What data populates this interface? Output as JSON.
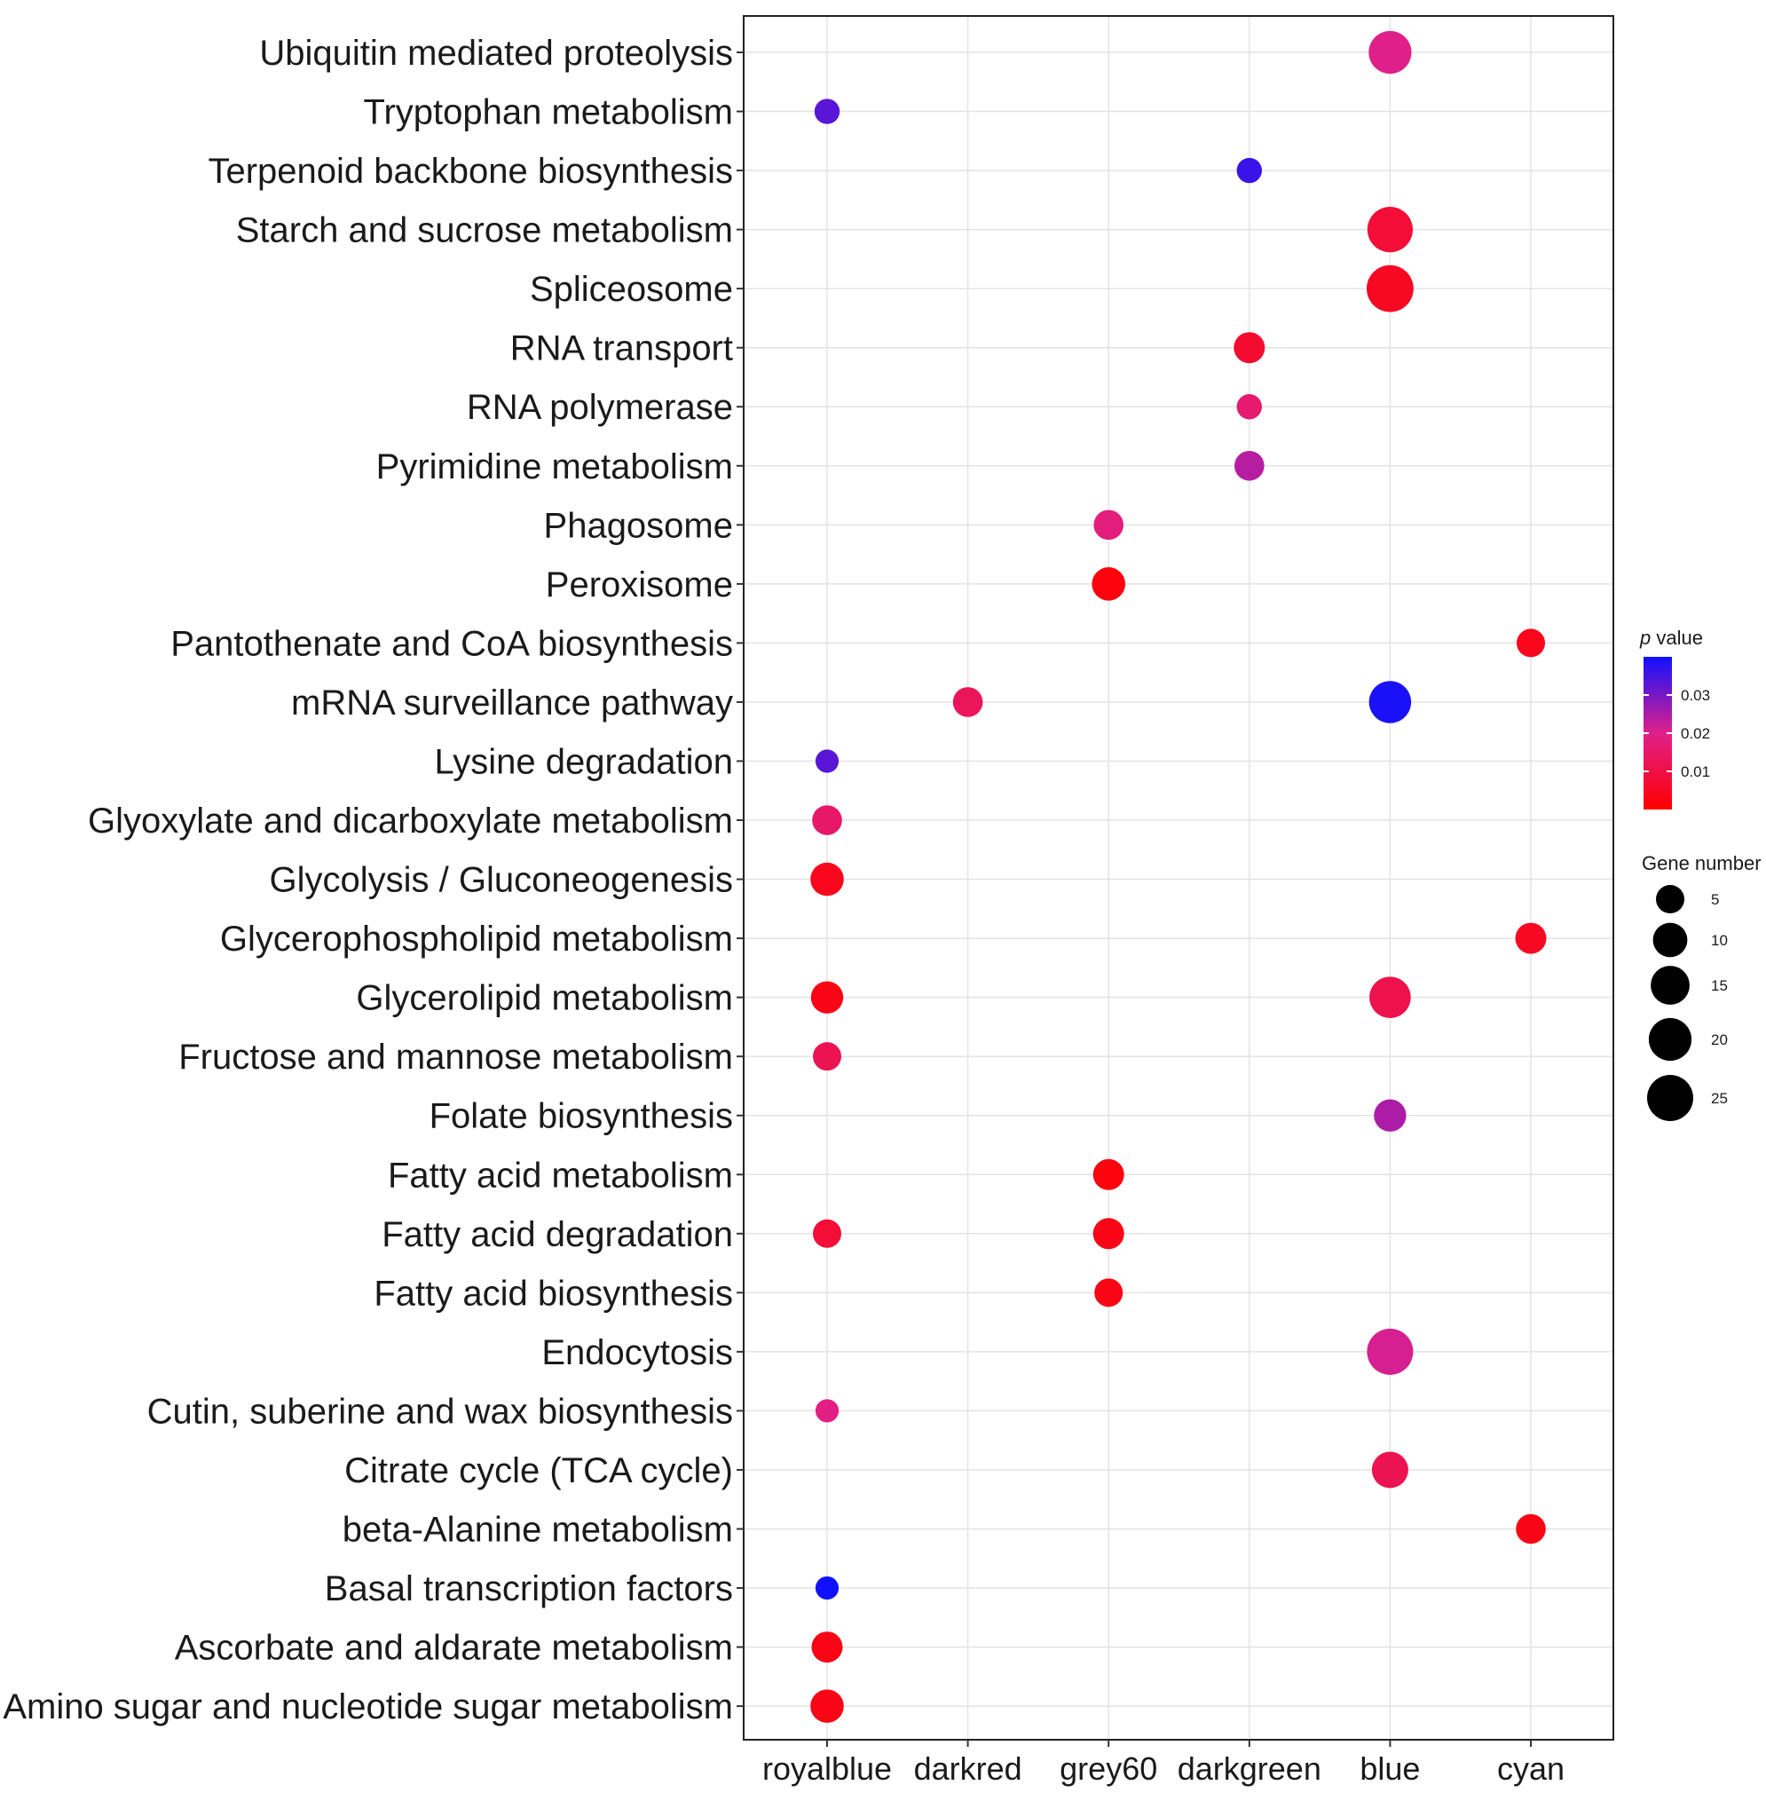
{
  "chart_data": {
    "type": "scatter",
    "title": "",
    "xlabel": "",
    "ylabel": "",
    "x_categories": [
      "royalblue",
      "darkred",
      "grey60",
      "darkgreen",
      "blue",
      "cyan"
    ],
    "y_categories": [
      "Ubiquitin mediated proteolysis",
      "Tryptophan metabolism",
      "Terpenoid backbone biosynthesis",
      "Starch and sucrose metabolism",
      "Spliceosome",
      "RNA transport",
      "RNA polymerase",
      "Pyrimidine metabolism",
      "Phagosome",
      "Peroxisome",
      "Pantothenate and CoA biosynthesis",
      "mRNA surveillance pathway",
      "Lysine degradation",
      "Glyoxylate and dicarboxylate metabolism",
      "Glycolysis / Gluconeogenesis",
      "Glycerophospholipid metabolism",
      "Glycerolipid metabolism",
      "Fructose and mannose metabolism",
      "Folate biosynthesis",
      "Fatty acid metabolism",
      "Fatty acid degradation",
      "Fatty acid biosynthesis",
      "Endocytosis",
      "Cutin, suberine and wax biosynthesis",
      "Citrate cycle (TCA cycle)",
      "beta-Alanine metabolism",
      "Basal transcription factors",
      "Ascorbate and aldarate metabolism",
      "Amino sugar and nucleotide sugar metabolism"
    ],
    "points": [
      {
        "pathway": "Ubiquitin mediated proteolysis",
        "module": "blue",
        "gene_number": 20,
        "p_value": 0.02
      },
      {
        "pathway": "Tryptophan metabolism",
        "module": "royalblue",
        "gene_number": 3,
        "p_value": 0.033
      },
      {
        "pathway": "Terpenoid backbone biosynthesis",
        "module": "darkgreen",
        "gene_number": 3,
        "p_value": 0.036
      },
      {
        "pathway": "Starch and sucrose metabolism",
        "module": "blue",
        "gene_number": 24,
        "p_value": 0.008
      },
      {
        "pathway": "Spliceosome",
        "module": "blue",
        "gene_number": 26,
        "p_value": 0.005
      },
      {
        "pathway": "RNA transport",
        "module": "darkgreen",
        "gene_number": 7,
        "p_value": 0.007
      },
      {
        "pathway": "RNA polymerase",
        "module": "darkgreen",
        "gene_number": 3,
        "p_value": 0.016
      },
      {
        "pathway": "Pyrimidine metabolism",
        "module": "darkgreen",
        "gene_number": 6,
        "p_value": 0.024
      },
      {
        "pathway": "Phagosome",
        "module": "grey60",
        "gene_number": 6,
        "p_value": 0.018
      },
      {
        "pathway": "Peroxisome",
        "module": "grey60",
        "gene_number": 9,
        "p_value": 0.002
      },
      {
        "pathway": "Pantothenate and CoA biosynthesis",
        "module": "cyan",
        "gene_number": 5,
        "p_value": 0.004
      },
      {
        "pathway": "mRNA surveillance pathway",
        "module": "darkred",
        "gene_number": 6,
        "p_value": 0.013
      },
      {
        "pathway": "mRNA surveillance pathway",
        "module": "blue",
        "gene_number": 19,
        "p_value": 0.039
      },
      {
        "pathway": "Lysine degradation",
        "module": "royalblue",
        "gene_number": 2,
        "p_value": 0.033
      },
      {
        "pathway": "Glyoxylate and dicarboxylate metabolism",
        "module": "royalblue",
        "gene_number": 6,
        "p_value": 0.015
      },
      {
        "pathway": "Glycolysis / Gluconeogenesis",
        "module": "royalblue",
        "gene_number": 9,
        "p_value": 0.004
      },
      {
        "pathway": "Glycerophospholipid metabolism",
        "module": "cyan",
        "gene_number": 7,
        "p_value": 0.005
      },
      {
        "pathway": "Glycerolipid metabolism",
        "module": "royalblue",
        "gene_number": 8,
        "p_value": 0.003
      },
      {
        "pathway": "Glycerolipid metabolism",
        "module": "blue",
        "gene_number": 18,
        "p_value": 0.011
      },
      {
        "pathway": "Fructose and mannose metabolism",
        "module": "royalblue",
        "gene_number": 5,
        "p_value": 0.012
      },
      {
        "pathway": "Folate biosynthesis",
        "module": "blue",
        "gene_number": 8,
        "p_value": 0.025
      },
      {
        "pathway": "Fatty acid metabolism",
        "module": "grey60",
        "gene_number": 7,
        "p_value": 0.002
      },
      {
        "pathway": "Fatty acid degradation",
        "module": "royalblue",
        "gene_number": 5,
        "p_value": 0.008
      },
      {
        "pathway": "Fatty acid degradation",
        "module": "grey60",
        "gene_number": 7,
        "p_value": 0.003
      },
      {
        "pathway": "Fatty acid biosynthesis",
        "module": "grey60",
        "gene_number": 5,
        "p_value": 0.003
      },
      {
        "pathway": "Endocytosis",
        "module": "blue",
        "gene_number": 25,
        "p_value": 0.021
      },
      {
        "pathway": "Cutin, suberine and wax biosynthesis",
        "module": "royalblue",
        "gene_number": 2,
        "p_value": 0.019
      },
      {
        "pathway": "Citrate cycle (TCA cycle)",
        "module": "blue",
        "gene_number": 12,
        "p_value": 0.012
      },
      {
        "pathway": "beta-Alanine metabolism",
        "module": "cyan",
        "gene_number": 6,
        "p_value": 0.003
      },
      {
        "pathway": "Basal transcription factors",
        "module": "royalblue",
        "gene_number": 2,
        "p_value": 0.04
      },
      {
        "pathway": "Ascorbate and aldarate metabolism",
        "module": "royalblue",
        "gene_number": 7,
        "p_value": 0.003
      },
      {
        "pathway": "Amino sugar and nucleotide sugar metabolism",
        "module": "royalblue",
        "gene_number": 9,
        "p_value": 0.003
      }
    ],
    "color_legend": {
      "title_prefix": "p",
      "title_suffix": " value",
      "low_color": "#ff0000",
      "mid_color": "#e0208a",
      "high_color": "#1010ff",
      "range": [
        0.0,
        0.04
      ],
      "ticks": [
        0.03,
        0.02,
        0.01
      ],
      "tick_labels": [
        "0.03",
        "0.02",
        "0.01"
      ]
    },
    "size_legend": {
      "title": "Gene number",
      "values": [
        5,
        10,
        15,
        20,
        25
      ],
      "labels": [
        "5",
        "10",
        "15",
        "20",
        "25"
      ]
    },
    "grid": true,
    "legend_position": "right"
  }
}
